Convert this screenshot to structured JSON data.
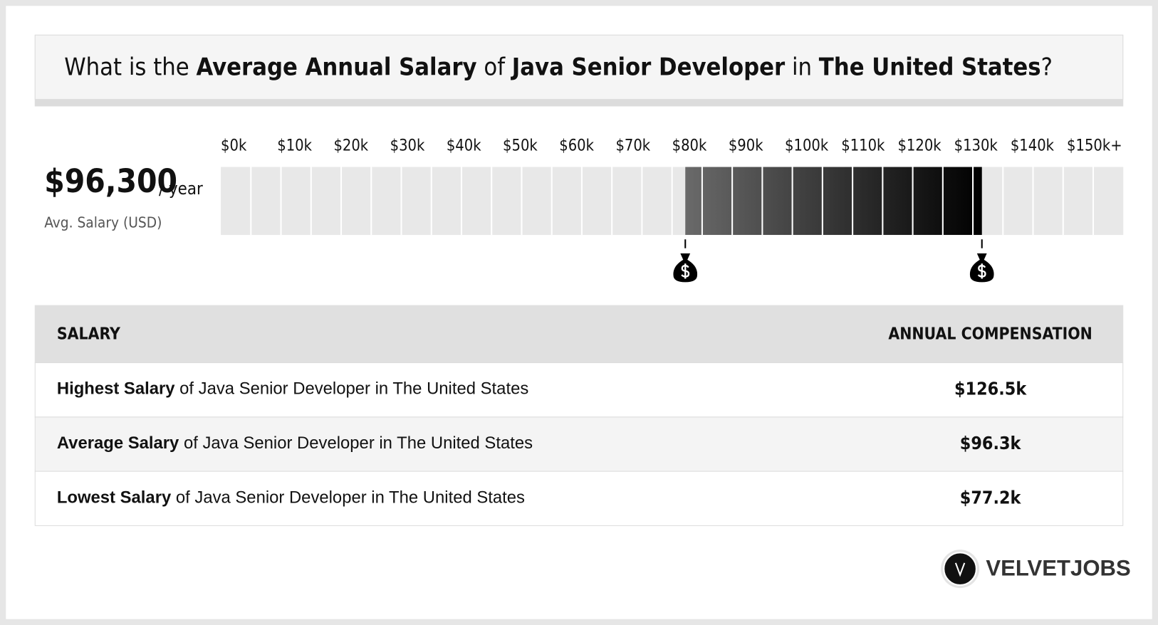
{
  "header": {
    "title": [
      {
        "text": "What is the ",
        "bold": false
      },
      {
        "text": "Average Annual Salary",
        "bold": true
      },
      {
        "text": " of ",
        "bold": false
      },
      {
        "text": "Java Senior Developer",
        "bold": true
      },
      {
        "text": " in ",
        "bold": false
      },
      {
        "text": "The United States",
        "bold": true
      },
      {
        "text": "?",
        "bold": false
      }
    ]
  },
  "summary": {
    "salary": "$96,300",
    "period": "/ year",
    "caption": "Avg. Salary (USD)"
  },
  "scale": {
    "lim": [
      0,
      150
    ],
    "ticks": [
      {
        "value": 0,
        "label": "$0k"
      },
      {
        "value": 10,
        "label": "$10k"
      },
      {
        "value": 20,
        "label": "$20k"
      },
      {
        "value": 30,
        "label": "$30k"
      },
      {
        "value": 40,
        "label": "$40k"
      },
      {
        "value": 50,
        "label": "$50k"
      },
      {
        "value": 60,
        "label": "$60k"
      },
      {
        "value": 70,
        "label": "$70k"
      },
      {
        "value": 80,
        "label": "$80k"
      },
      {
        "value": 90,
        "label": "$90k"
      },
      {
        "value": 100,
        "label": "$100k"
      },
      {
        "value": 110,
        "label": "$110k"
      },
      {
        "value": 120,
        "label": "$120k"
      },
      {
        "value": 130,
        "label": "$130k"
      },
      {
        "value": 140,
        "label": "$140k"
      },
      {
        "value": 150,
        "label": "$150k+"
      }
    ]
  },
  "table": {
    "columns": [
      "SALARY",
      "ANNUAL COMPENSATION"
    ],
    "rows": [
      {
        "label": "Highest Salary",
        "text": " of Java Senior Developer in The United States",
        "value": 126.5,
        "value_label": "$126.5k"
      },
      {
        "label": "Average Salary",
        "text": " of Java Senior Developer in The United States",
        "value": 96.3,
        "value_label": "$96.3k"
      },
      {
        "label": "Lowest Salary",
        "text": " of Java Senior Developer in The United States",
        "value": 77.2,
        "value_label": "$77.2k"
      }
    ]
  },
  "logo": {
    "text": "VELVETJOBS"
  }
}
